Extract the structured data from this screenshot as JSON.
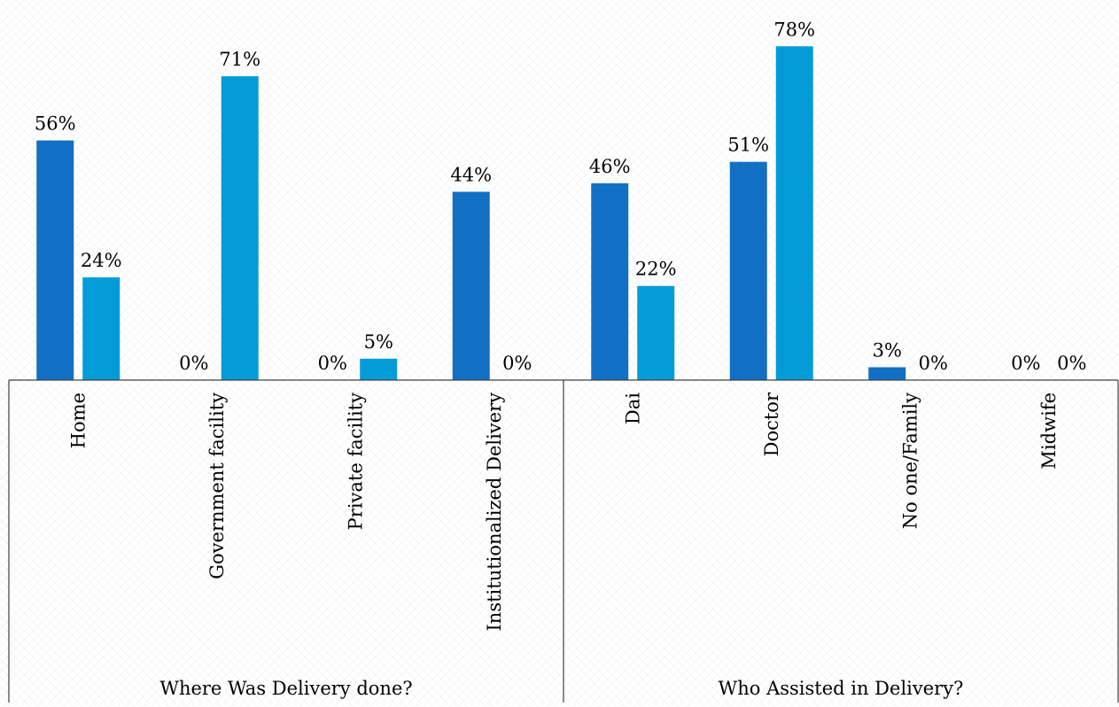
{
  "chart_data": {
    "type": "bar",
    "groups": [
      {
        "label": "Where Was Delivery done?",
        "categories": [
          "Home",
          "Government facility",
          "Private facility",
          "Institutionalized Delivery"
        ]
      },
      {
        "label": "Who Assisted in Delivery?",
        "categories": [
          "Dai",
          "Doctor",
          "No one/Family",
          "Midwife"
        ]
      }
    ],
    "categories": [
      "Home",
      "Government facility",
      "Private facility",
      "Institutionalized Delivery",
      "Dai",
      "Doctor",
      "No one/Family",
      "Midwife"
    ],
    "series": [
      {
        "values": [
          56,
          0,
          0,
          44,
          46,
          51,
          3,
          0
        ],
        "labels": [
          "56%",
          "0%",
          "0%",
          "44%",
          "46%",
          "51%",
          "3%",
          "0%"
        ],
        "color": "#1270C4"
      },
      {
        "values": [
          24,
          71,
          5,
          0,
          22,
          78,
          0,
          0
        ],
        "labels": [
          "24%",
          "71%",
          "5%",
          "0%",
          "22%",
          "78%",
          "0%",
          "0%"
        ],
        "color": "#049CD8"
      }
    ],
    "ylim": [
      0,
      80
    ],
    "title": "",
    "xlabel": "",
    "ylabel": "",
    "grid": false,
    "legend": "none"
  }
}
